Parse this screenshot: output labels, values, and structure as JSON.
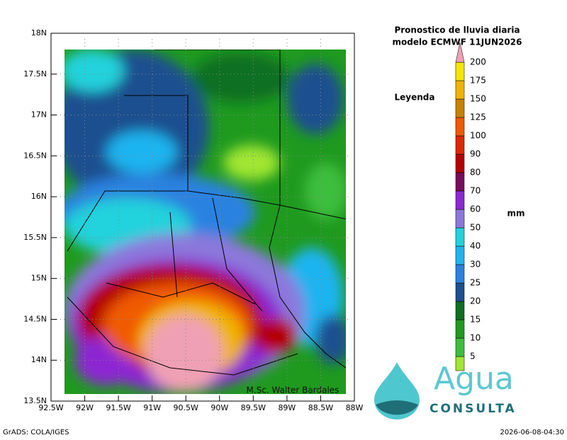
{
  "title": "Pronostico de lluvia diaria",
  "subtitle": "modelo ECMWF   11JUN2026",
  "legend_title": "Leyenda",
  "unit": "mm",
  "lat_labels": [
    "18N",
    "17.5N",
    "17N",
    "16.5N",
    "16N",
    "15.5N",
    "15N",
    "14.5N",
    "14N",
    "13.5N"
  ],
  "lon_labels": [
    "92.5W",
    "92W",
    "91.5W",
    "91W",
    "90.5W",
    "90W",
    "89.5W",
    "89W",
    "88.5W",
    "88W"
  ],
  "legend": [
    {
      "label": "5",
      "color": "#3cbe3c"
    },
    {
      "label": "10",
      "color": "#1f9a1f"
    },
    {
      "label": "15",
      "color": "#0f6f23"
    },
    {
      "label": "20",
      "color": "#1e4f8f"
    },
    {
      "label": "25",
      "color": "#2a82e0"
    },
    {
      "label": "30",
      "color": "#1eb4f0"
    },
    {
      "label": "40",
      "color": "#20d2dc"
    },
    {
      "label": "50",
      "color": "#8c78dc"
    },
    {
      "label": "60",
      "color": "#8c28d2"
    },
    {
      "label": "70",
      "color": "#7a0a5a"
    },
    {
      "label": "80",
      "color": "#b40000"
    },
    {
      "label": "90",
      "color": "#dc2800"
    },
    {
      "label": "100",
      "color": "#f05a00"
    },
    {
      "label": "125",
      "color": "#c88200"
    },
    {
      "label": "150",
      "color": "#f0b400"
    },
    {
      "label": "175",
      "color": "#f5e600"
    },
    {
      "label": "200",
      "color": "#f0a0b4"
    }
  ],
  "legend_base_color": "#a0e632",
  "author": "M.Sc. Walter Bardales",
  "logo": {
    "name": "Agua",
    "tagline": "CONSULTA"
  },
  "footer_left": "GrADS: COLA/IGES",
  "footer_right": "2026-06-08-04:30"
}
